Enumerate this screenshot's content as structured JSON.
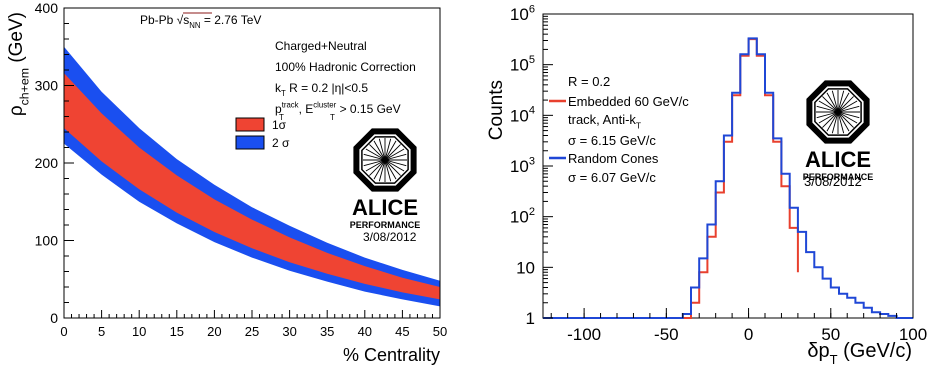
{
  "chart_data": [
    {
      "type": "area",
      "title": "Pb-Pb √s_NN = 2.76 TeV",
      "title_parts": {
        "prefix": "Pb-Pb ",
        "sqrt_symbol": "√",
        "s": "s",
        "sub": "NN",
        "suffix": " = 2.76 TeV",
        "color": "#8b1a1a"
      },
      "xlabel": "% Centrality",
      "ylabel": {
        "rho": "ρ",
        "sub": "ch+em",
        "unit": " (GeV)"
      },
      "xlim": [
        0,
        50
      ],
      "ylim": [
        0,
        400
      ],
      "x_ticks": [
        0,
        5,
        10,
        15,
        20,
        25,
        30,
        35,
        40,
        45,
        50
      ],
      "x_tick_labels": [
        "0",
        "5",
        "10",
        "15",
        "20",
        "25",
        "30",
        "35",
        "40",
        "45",
        "50"
      ],
      "y_ticks": [
        0,
        100,
        200,
        300,
        400
      ],
      "y_tick_labels": [
        "0",
        "100",
        "200",
        "300",
        "400"
      ],
      "grid": false,
      "info_lines": [
        "Charged+Neutral",
        "100% Hadronic Correction",
        {
          "k": "k",
          "ksub": "T",
          "rest": " R = 0.2 |η|<0.5"
        },
        {
          "p": "p",
          "psup": "track",
          "psub": "T",
          "sep": ", E",
          "esup": "cluster",
          "esub": "T",
          "rest": " > 0.15 GeV"
        }
      ],
      "legend_position": "upper-right",
      "series": [
        {
          "name": "2 σ",
          "color": "#1a4ff0",
          "x": [
            0,
            5,
            10,
            15,
            20,
            25,
            30,
            35,
            40,
            45,
            50
          ],
          "upper": [
            350,
            292,
            245,
            205,
            172,
            143,
            119,
            97,
            78,
            62,
            48
          ],
          "lower": [
            225,
            185,
            150,
            122,
            98,
            78,
            61,
            47,
            34,
            24,
            15
          ]
        },
        {
          "name": "1 σ",
          "color": "#ef4433",
          "x": [
            0,
            5,
            10,
            15,
            20,
            25,
            30,
            35,
            40,
            45,
            50
          ],
          "upper": [
            316,
            264,
            220,
            184,
            153,
            127,
            104,
            84,
            67,
            52,
            40
          ],
          "lower": [
            245,
            202,
            166,
            136,
            111,
            90,
            72,
            57,
            44,
            33,
            24
          ]
        }
      ],
      "legend_items": [
        "1σ",
        "2 σ"
      ],
      "logo": {
        "text": "ALICE",
        "subtext": "PERFORMANCE"
      },
      "date": "3/08/2012"
    },
    {
      "type": "line",
      "xlabel": {
        "delta": "δp",
        "sub": "T",
        "unit": " (GeV/c)"
      },
      "ylabel": "Counts",
      "xlim": [
        -125,
        100
      ],
      "ylim_log10": [
        0,
        6
      ],
      "log_y": true,
      "x_ticks": [
        -100,
        -50,
        0,
        50,
        100
      ],
      "x_tick_labels": [
        "-100",
        "-50",
        "0",
        "50",
        "100"
      ],
      "y_ticks_log10": [
        0,
        1,
        2,
        3,
        4,
        5,
        6
      ],
      "y_tick_labels": [
        "1",
        "10",
        "10²",
        "10³",
        "10⁴",
        "10⁵",
        "10⁶"
      ],
      "y_tick_label_parts": [
        {
          "base": "1",
          "exp": ""
        },
        {
          "base": "10",
          "exp": ""
        },
        {
          "base": "10",
          "exp": "2"
        },
        {
          "base": "10",
          "exp": "3"
        },
        {
          "base": "10",
          "exp": "4"
        },
        {
          "base": "10",
          "exp": "5"
        },
        {
          "base": "10",
          "exp": "6"
        }
      ],
      "grid": false,
      "legend_position": "upper-left",
      "legend_header": "R = 0.2",
      "legend_entries": [
        {
          "name": "Embedded 60 GeV/c",
          "name2": {
            "text": "track, Anti-k",
            "sub": "T"
          },
          "sigma": "σ = 6.15 GeV/c",
          "color": "#e8402e"
        },
        {
          "name": "Random Cones",
          "sigma": "σ = 6.07 GeV/c",
          "color": "#1f47d6"
        }
      ],
      "series": [
        {
          "name": "Embedded 60 GeV/c track, Anti-kT",
          "color": "#e8402e",
          "x": [
            -40,
            -35,
            -30,
            -25,
            -20,
            -15,
            -10,
            -5,
            0,
            5,
            10,
            15,
            20,
            25,
            30
          ],
          "y": [
            1,
            2,
            8,
            40,
            300,
            3000,
            25000,
            150000,
            320000,
            150000,
            25000,
            3000,
            400,
            60,
            8
          ]
        },
        {
          "name": "Random Cones",
          "color": "#1f47d6",
          "x": [
            -125,
            -45,
            -40,
            -35,
            -30,
            -25,
            -20,
            -15,
            -10,
            -5,
            0,
            5,
            10,
            15,
            20,
            25,
            30,
            35,
            40,
            45,
            50,
            55,
            60,
            65,
            70,
            75,
            80,
            85,
            90,
            95,
            100
          ],
          "y": [
            1,
            1,
            1.2,
            4,
            15,
            70,
            500,
            4000,
            28000,
            160000,
            330000,
            160000,
            28000,
            3500,
            700,
            150,
            50,
            20,
            10,
            6,
            4,
            3,
            2.5,
            2,
            1.6,
            1.3,
            1.2,
            1.1,
            1,
            1,
            1
          ]
        }
      ],
      "logo": {
        "text": "ALICE",
        "subtext": "PERFORMANCE"
      },
      "date": "3/08/2012"
    }
  ]
}
